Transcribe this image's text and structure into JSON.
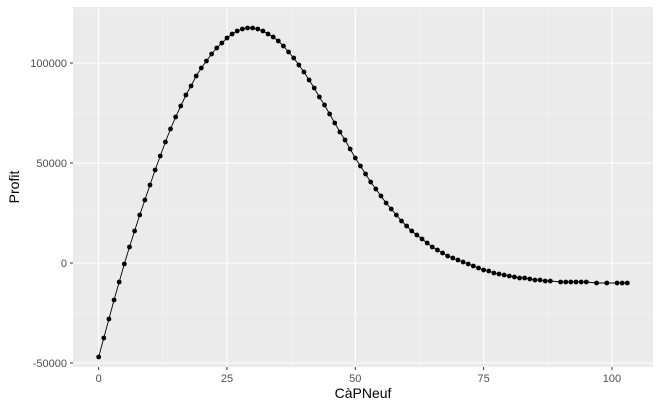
{
  "chart_data": {
    "type": "line",
    "xlabel": "CàPNeuf",
    "ylabel": "Profit",
    "xlim": [
      -5,
      108
    ],
    "ylim": [
      -52000,
      128000
    ],
    "x_ticks": [
      0,
      25,
      50,
      75,
      100
    ],
    "y_ticks": [
      -50000,
      0,
      50000,
      100000
    ],
    "x_tick_labels": [
      "0",
      "25",
      "50",
      "75",
      "100"
    ],
    "y_tick_labels": [
      "-50000",
      "0",
      "50000",
      "100000"
    ],
    "grid": true,
    "legend": "none",
    "panel_background": "#ebebeb",
    "series": [
      {
        "marker": "circle",
        "color": "#000000",
        "x": [
          0,
          1,
          2,
          3,
          4,
          5,
          6,
          7,
          8,
          9,
          10,
          11,
          12,
          13,
          14,
          15,
          16,
          17,
          18,
          19,
          20,
          21,
          22,
          23,
          24,
          25,
          26,
          27,
          28,
          29,
          30,
          31,
          32,
          33,
          34,
          35,
          36,
          37,
          38,
          39,
          40,
          41,
          42,
          43,
          44,
          45,
          46,
          47,
          48,
          49,
          50,
          51,
          52,
          53,
          54,
          55,
          56,
          57,
          58,
          59,
          60,
          61,
          62,
          63,
          64,
          65,
          66,
          67,
          68,
          69,
          70,
          71,
          72,
          73,
          74,
          75,
          76,
          77,
          78,
          79,
          80,
          81,
          82,
          83,
          84,
          85,
          86,
          87,
          88,
          90,
          91,
          92,
          93,
          94,
          95,
          97,
          99,
          101,
          102,
          103
        ],
        "values": [
          -47000,
          -37500,
          -28000,
          -18500,
          -9500,
          -500,
          8000,
          16000,
          24000,
          31500,
          39000,
          46500,
          53500,
          60500,
          67000,
          73000,
          78500,
          84000,
          88500,
          93500,
          97500,
          101000,
          104500,
          107500,
          110000,
          112500,
          114500,
          116000,
          117000,
          117500,
          117500,
          117000,
          116000,
          114500,
          113000,
          111000,
          108500,
          105500,
          102500,
          99000,
          95500,
          91500,
          87500,
          83000,
          79000,
          74500,
          70000,
          65500,
          61500,
          57000,
          52500,
          48500,
          44500,
          40500,
          37000,
          33500,
          30000,
          27000,
          24000,
          21000,
          18500,
          16000,
          14000,
          12000,
          10000,
          8000,
          6500,
          5000,
          3500,
          2500,
          1500,
          500,
          -500,
          -1500,
          -2500,
          -3500,
          -4000,
          -5000,
          -5500,
          -6000,
          -6500,
          -7000,
          -7500,
          -7500,
          -8000,
          -8500,
          -8500,
          -9000,
          -9000,
          -9500,
          -9500,
          -9500,
          -9500,
          -9500,
          -9500,
          -10000,
          -10000,
          -10000,
          -10000,
          -10000
        ]
      }
    ]
  }
}
